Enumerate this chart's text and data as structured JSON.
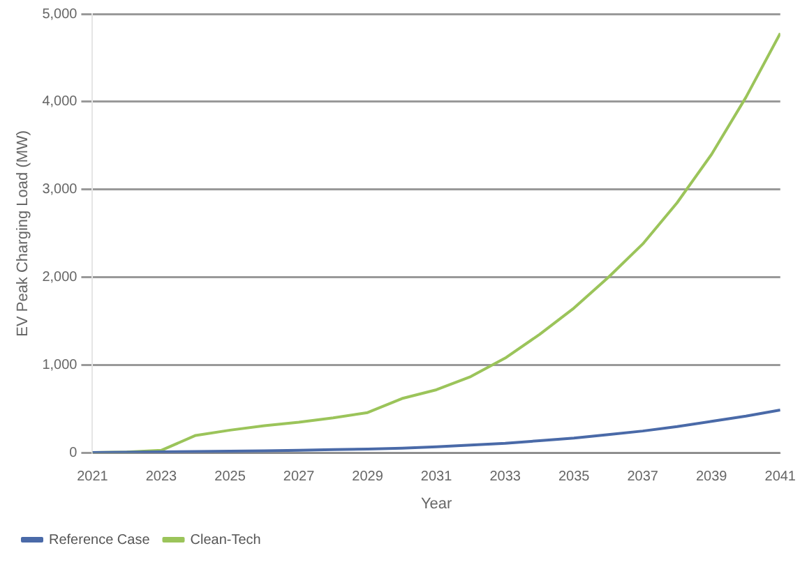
{
  "chart_data": {
    "type": "line",
    "xlabel": "Year",
    "ylabel": "EV Peak Charging Load (MW)",
    "x": [
      2021,
      2022,
      2023,
      2024,
      2025,
      2026,
      2027,
      2028,
      2029,
      2030,
      2031,
      2032,
      2033,
      2034,
      2035,
      2036,
      2037,
      2038,
      2039,
      2040,
      2041
    ],
    "series": [
      {
        "name": "Reference Case",
        "color": "#4a6aa8",
        "values": [
          5,
          8,
          12,
          16,
          20,
          25,
          30,
          38,
          45,
          55,
          70,
          90,
          110,
          140,
          170,
          210,
          250,
          300,
          360,
          420,
          490
        ]
      },
      {
        "name": "Clean-Tech",
        "color": "#9bc45a",
        "values": [
          5,
          10,
          30,
          200,
          260,
          310,
          350,
          400,
          460,
          620,
          720,
          870,
          1080,
          1350,
          1650,
          2000,
          2380,
          2850,
          3400,
          4050,
          4780
        ]
      }
    ],
    "xlim": [
      2021,
      2041
    ],
    "xticks": [
      2021,
      2023,
      2025,
      2027,
      2029,
      2031,
      2033,
      2035,
      2037,
      2039,
      2041
    ],
    "ylim": [
      0,
      5000
    ],
    "yticks": [
      0,
      {
        "value": 1000,
        "label": "1,000"
      },
      {
        "value": 2000,
        "label": "2,000"
      },
      {
        "value": 3000,
        "label": "3,000"
      },
      {
        "value": 4000,
        "label": "4,000"
      },
      {
        "value": 5000,
        "label": "5,000"
      }
    ],
    "grid": "y",
    "legend": "bottom",
    "marker": "none",
    "line_style": "solid"
  }
}
